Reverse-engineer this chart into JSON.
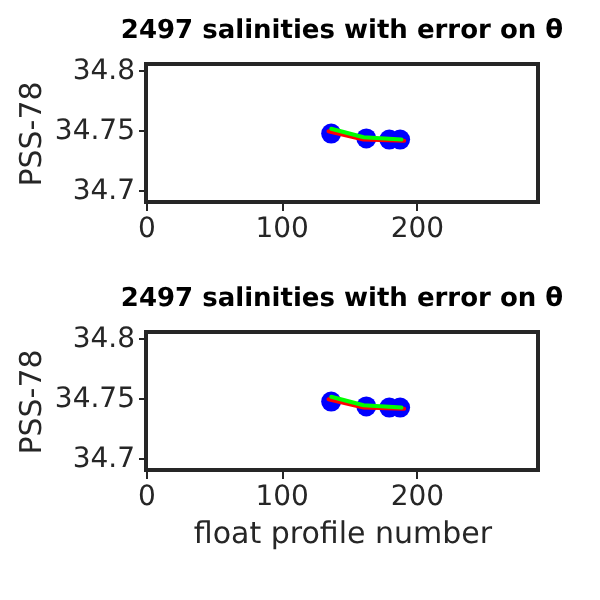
{
  "chart_data": [
    {
      "type": "line",
      "title": "2497 salinities with error on θ",
      "ylabel": "PSS-78",
      "xlim": [
        0,
        290
      ],
      "ylim": [
        34.69,
        34.805
      ],
      "xticks": [
        0,
        100,
        200
      ],
      "yticks": [
        34.7,
        34.75,
        34.8
      ],
      "grid": false,
      "series": [
        {
          "type": "scatter",
          "marker": "circle",
          "color": "#0000ff",
          "x": [
            137,
            163,
            180,
            188
          ],
          "values": [
            34.747,
            34.743,
            34.742,
            34.742
          ]
        },
        {
          "color": "#ff0000",
          "x": [
            135,
            161,
            191
          ],
          "values": [
            34.749,
            34.742,
            34.741
          ]
        },
        {
          "color": "#00ff00",
          "x": [
            137,
            161,
            189
          ],
          "values": [
            34.751,
            34.744,
            34.742
          ]
        }
      ]
    },
    {
      "type": "line",
      "title": "2497 salinities with error on θ",
      "xlabel": "float profile number",
      "ylabel": "PSS-78",
      "xlim": [
        0,
        290
      ],
      "ylim": [
        34.69,
        34.805
      ],
      "xticks": [
        0,
        100,
        200
      ],
      "yticks": [
        34.7,
        34.75,
        34.8
      ],
      "grid": false,
      "series": [
        {
          "type": "scatter",
          "marker": "circle",
          "color": "#0000ff",
          "x": [
            137,
            163,
            180,
            188
          ],
          "values": [
            34.747,
            34.743,
            34.742,
            34.742
          ]
        },
        {
          "color": "#ff0000",
          "x": [
            135,
            161,
            191
          ],
          "values": [
            34.749,
            34.742,
            34.741
          ]
        },
        {
          "color": "#00ff00",
          "x": [
            137,
            161,
            189
          ],
          "values": [
            34.751,
            34.744,
            34.742
          ]
        }
      ]
    }
  ]
}
